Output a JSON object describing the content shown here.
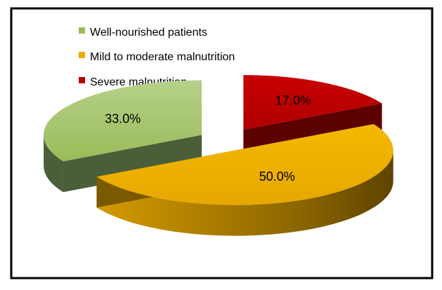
{
  "chart_data": {
    "type": "pie",
    "title": "",
    "style": "3d-exploded",
    "legend_position": "top-left",
    "series": [
      {
        "name": "Well-nourished patients",
        "value": 33.0,
        "label": "33.0%",
        "color": "#9bbb59",
        "side_color": "#4a5e3a"
      },
      {
        "name": "Mild to moderate malnutrition",
        "value": 50.0,
        "label": "50.0%",
        "color": "#e6ac00",
        "side_color": "#7a5a00"
      },
      {
        "name": "Severe malnutrition",
        "value": 17.0,
        "label": "17.0%",
        "color": "#c00000",
        "side_color": "#5c0000"
      }
    ]
  }
}
